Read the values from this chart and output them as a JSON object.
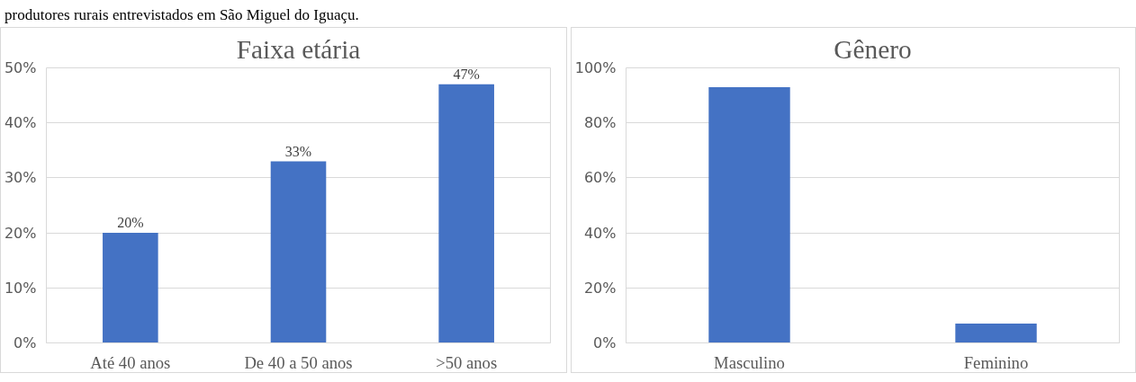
{
  "chart_data": [
    {
      "type": "bar",
      "title": "Faixa etária",
      "annotations": [
        "produtores rurais entrevistados em São Miguel do Iguaçu."
      ],
      "categories": [
        "Até 40 anos",
        "De 40 a 50 anos",
        ">50 anos"
      ],
      "values": [
        20,
        33,
        47
      ],
      "color": "#4472c4",
      "ylim": [
        0,
        50
      ],
      "yticks": [
        {
          "value": 0,
          "label": "0%"
        },
        {
          "value": 10,
          "label": "10%"
        },
        {
          "value": 20,
          "label": "20%"
        },
        {
          "value": 30,
          "label": "30%"
        },
        {
          "value": 40,
          "label": "40%"
        },
        {
          "value": 50,
          "label": "50%"
        }
      ],
      "value_labels": [
        "20%",
        "33%",
        "47%"
      ],
      "grid": "y"
    },
    {
      "type": "bar",
      "title": "Gênero",
      "categories": [
        "Masculino",
        "Feminino"
      ],
      "values": [
        93,
        7
      ],
      "color": "#4472c4",
      "ylim": [
        0,
        100
      ],
      "yticks": [
        {
          "value": 0,
          "label": "0%"
        },
        {
          "value": 20,
          "label": "20%"
        },
        {
          "value": 40,
          "label": "40%"
        },
        {
          "value": 60,
          "label": "60%"
        },
        {
          "value": 80,
          "label": "80%"
        },
        {
          "value": 100,
          "label": "100%"
        }
      ],
      "grid": "y"
    }
  ]
}
